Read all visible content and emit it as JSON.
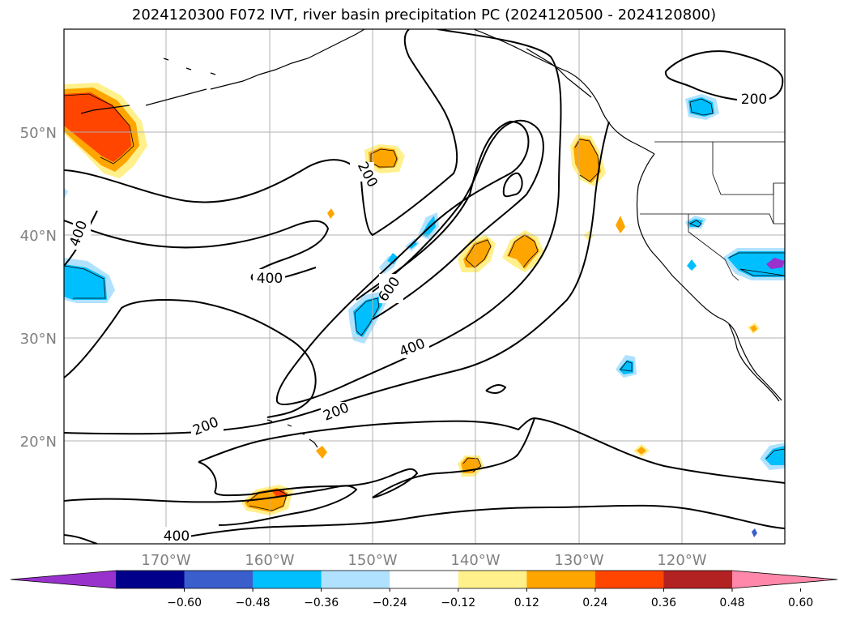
{
  "title": "2024120300 F072 IVT, river basin precipitation PC (2024120500 - 2024120800)",
  "lat_labels": [
    "50°N",
    "40°N",
    "30°N",
    "20°N"
  ],
  "lon_labels": [
    "170°W",
    "160°W",
    "150°W",
    "140°W",
    "130°W",
    "120°W"
  ],
  "contour_labels": [
    "200",
    "200",
    "200",
    "200",
    "400",
    "400",
    "400",
    "400",
    "600"
  ],
  "colorbar": {
    "ticks": [
      "−0.60",
      "−0.48",
      "−0.36",
      "−0.24",
      "−0.12",
      "0.12",
      "0.24",
      "0.36",
      "0.48",
      "0.60"
    ],
    "colors": [
      "#9932cc",
      "#00008b",
      "#3a5fcd",
      "#00bfff",
      "#b0e2ff",
      "#ffffff",
      "#fff08c",
      "#ffa500",
      "#ff4500",
      "#b22222",
      "#ff88aa"
    ]
  },
  "fill_colors": {
    "light_blue": "#b0e2ff",
    "blue": "#00bfff",
    "dark_blue": "#3a5fcd",
    "purple": "#9932cc",
    "light_yellow": "#fff08c",
    "orange": "#ffa500",
    "red_orange": "#ff4500"
  }
}
